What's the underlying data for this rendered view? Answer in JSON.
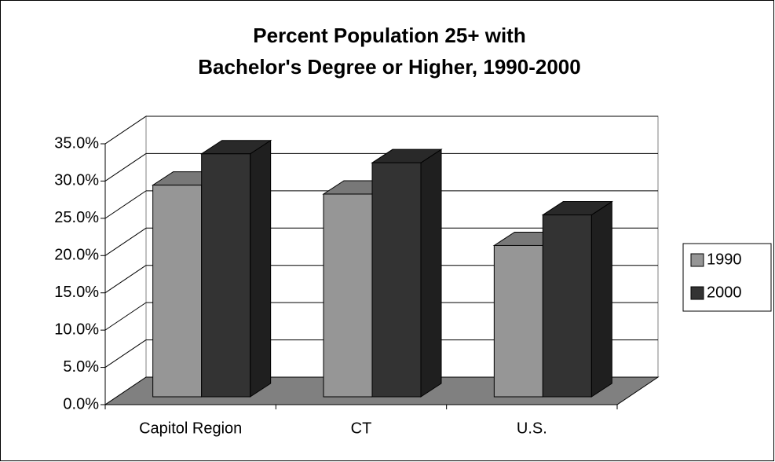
{
  "chart_data": {
    "type": "bar3d",
    "title": [
      "Percent Population 25+ with",
      "Bachelor's Degree or Higher, 1990-2000"
    ],
    "categories": [
      "Capitol Region",
      "CT",
      "U.S."
    ],
    "series": [
      {
        "name": "1990",
        "color": "#969696",
        "values": [
          28.4,
          27.2,
          20.3
        ]
      },
      {
        "name": "2000",
        "color": "#333333",
        "values": [
          32.6,
          31.4,
          24.4
        ]
      }
    ],
    "ylim": [
      0,
      35
    ],
    "yticks": [
      {
        "value": 0,
        "label": "0.0%"
      },
      {
        "value": 5,
        "label": "5.0%"
      },
      {
        "value": 10,
        "label": "10.0%"
      },
      {
        "value": 15,
        "label": "15.0%"
      },
      {
        "value": 20,
        "label": "20.0%"
      },
      {
        "value": 25,
        "label": "25.0%"
      },
      {
        "value": 30,
        "label": "30.0%"
      },
      {
        "value": 35,
        "label": "35.0%"
      }
    ],
    "grid": true,
    "legend": "right"
  }
}
